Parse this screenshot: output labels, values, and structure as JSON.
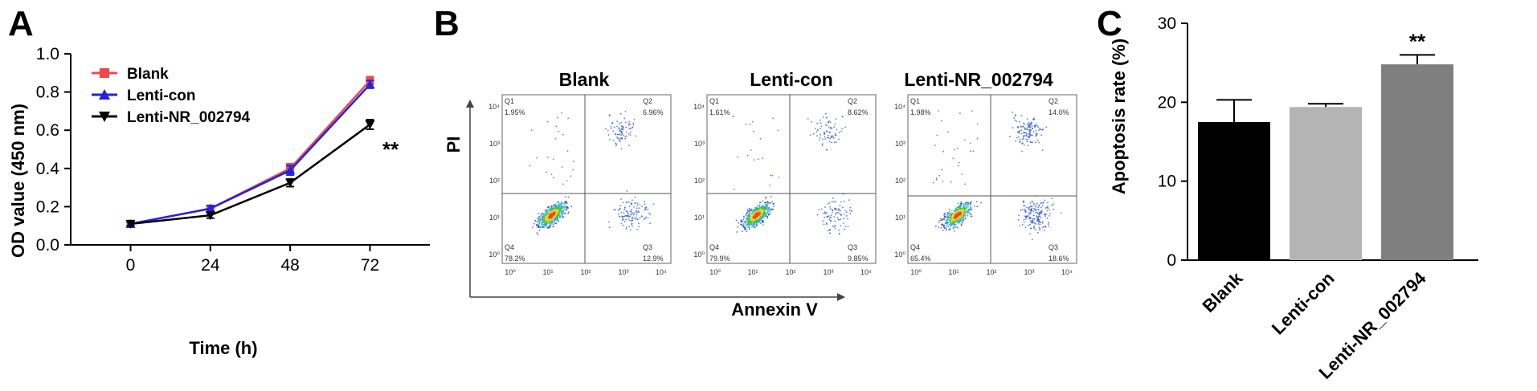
{
  "panels": [
    {
      "letter": "A",
      "chart_data": {
        "type": "line",
        "xlabel": "Time (h)",
        "ylabel": "OD value (450 nm)",
        "x": [
          0,
          24,
          48,
          72
        ],
        "x_ticks": [
          "0",
          "24",
          "48",
          "72"
        ],
        "xlim": [
          -18,
          90
        ],
        "ylim": [
          0.0,
          1.0
        ],
        "y_ticks": [
          "0.0",
          "0.2",
          "0.4",
          "0.6",
          "0.8",
          "1.0"
        ],
        "series": [
          {
            "name": "Blank",
            "color": "#f0474c",
            "marker": "square",
            "values": [
              0.11,
              0.19,
              0.4,
              0.86
            ],
            "errors": [
              0.01,
              0.015,
              0.025,
              0.02
            ]
          },
          {
            "name": "Lenti-con",
            "color": "#2222dd",
            "marker": "triangle-up",
            "values": [
              0.11,
              0.19,
              0.39,
              0.84
            ],
            "errors": [
              0.01,
              0.015,
              0.025,
              0.02
            ]
          },
          {
            "name": "Lenti-NR_002794",
            "color": "#000000",
            "marker": "triangle-down",
            "values": [
              0.11,
              0.155,
              0.325,
              0.63
            ],
            "errors": [
              0.01,
              0.015,
              0.02,
              0.025
            ]
          }
        ],
        "annotation": "**",
        "legend": "top-left"
      }
    },
    {
      "letter": "B",
      "flow": {
        "xlabel": "Annexin V",
        "ylabel": "PI",
        "axis_ticks": [
          "10⁰",
          "10¹",
          "10²",
          "10³",
          "10⁴"
        ],
        "plots": [
          {
            "title": "Blank",
            "quadrants": {
              "q1": "Q1",
              "q1v": "1.95%",
              "q2": "Q2",
              "q2v": "6.96%",
              "q3": "Q3",
              "q3v": "12.9%",
              "q4": "Q4",
              "q4v": "78.2%"
            }
          },
          {
            "title": "Lenti-con",
            "quadrants": {
              "q1": "Q1",
              "q1v": "1.61%",
              "q2": "Q2",
              "q2v": "8.62%",
              "q3": "Q3",
              "q3v": "9.85%",
              "q4": "Q4",
              "q4v": "79.9%"
            }
          },
          {
            "title": "Lenti-NR_002794",
            "quadrants": {
              "q1": "Q1",
              "q1v": "1.98%",
              "q2": "Q2",
              "q2v": "14.0%",
              "q3": "Q3",
              "q3v": "18.6%",
              "q4": "Q4",
              "q4v": "65.4%"
            }
          }
        ]
      }
    },
    {
      "letter": "C",
      "chart_data": {
        "type": "bar",
        "ylabel": "Apoptosis rate (%)",
        "categories": [
          "Blank",
          "Lenti-con",
          "Lenti-NR_002794"
        ],
        "values": [
          17.5,
          19.4,
          24.8
        ],
        "errors": [
          2.8,
          0.4,
          1.2
        ],
        "colors": [
          "#000000",
          "#b4b4b4",
          "#7f7f7f"
        ],
        "ylim": [
          0,
          30
        ],
        "y_ticks": [
          "0",
          "10",
          "20",
          "30"
        ],
        "annotation": "**"
      }
    }
  ]
}
